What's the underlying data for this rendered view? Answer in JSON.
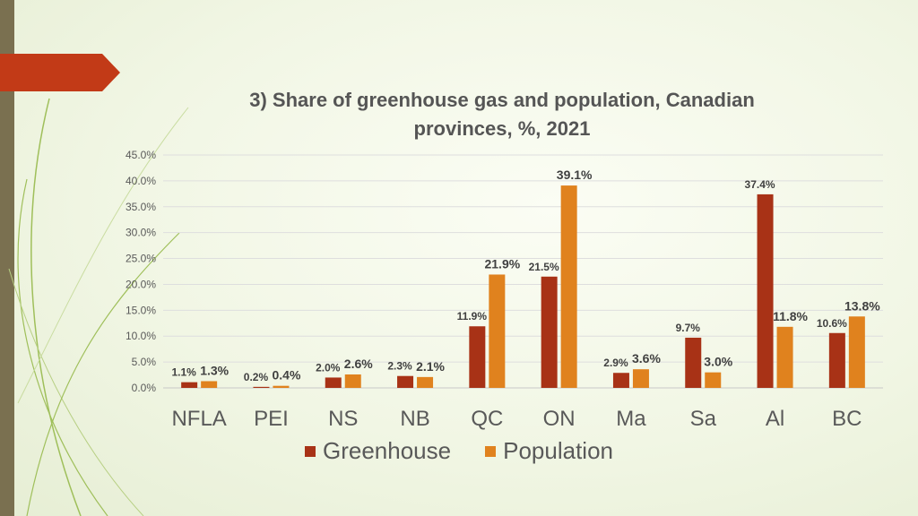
{
  "chart_data": {
    "type": "bar",
    "title_line1": "3) Share of greenhouse gas and population, Canadian",
    "title_line2": "provinces, %, 2021",
    "categories": [
      "NFLA",
      "PEI",
      "NS",
      "NB",
      "QC",
      "ON",
      "Ma",
      "Sa",
      "Al",
      "BC"
    ],
    "series": [
      {
        "name": "Greenhouse",
        "color": "#a83216",
        "values": [
          1.1,
          0.2,
          2.0,
          2.3,
          11.9,
          21.5,
          2.9,
          9.7,
          37.4,
          10.6
        ],
        "labels": [
          "1.1%",
          "0.2%",
          "2.0%",
          "2.3%",
          "11.9%",
          "21.5%",
          "2.9%",
          "9.7%",
          "37.4%",
          "10.6%"
        ]
      },
      {
        "name": "Population",
        "color": "#e0821e",
        "values": [
          1.3,
          0.4,
          2.6,
          2.1,
          21.9,
          39.1,
          3.6,
          3.0,
          11.8,
          13.8
        ],
        "labels": [
          "1.3%",
          "0.4%",
          "2.6%",
          "2.1%",
          "21.9%",
          "39.1%",
          "3.6%",
          "3.0%",
          "11.8%",
          "13.8%"
        ]
      }
    ],
    "ylim": [
      0,
      45
    ],
    "yticks": [
      "0.0%",
      "5.0%",
      "10.0%",
      "15.0%",
      "20.0%",
      "25.0%",
      "30.0%",
      "35.0%",
      "40.0%",
      "45.0%"
    ],
    "grid": true,
    "legend": "bottom"
  }
}
